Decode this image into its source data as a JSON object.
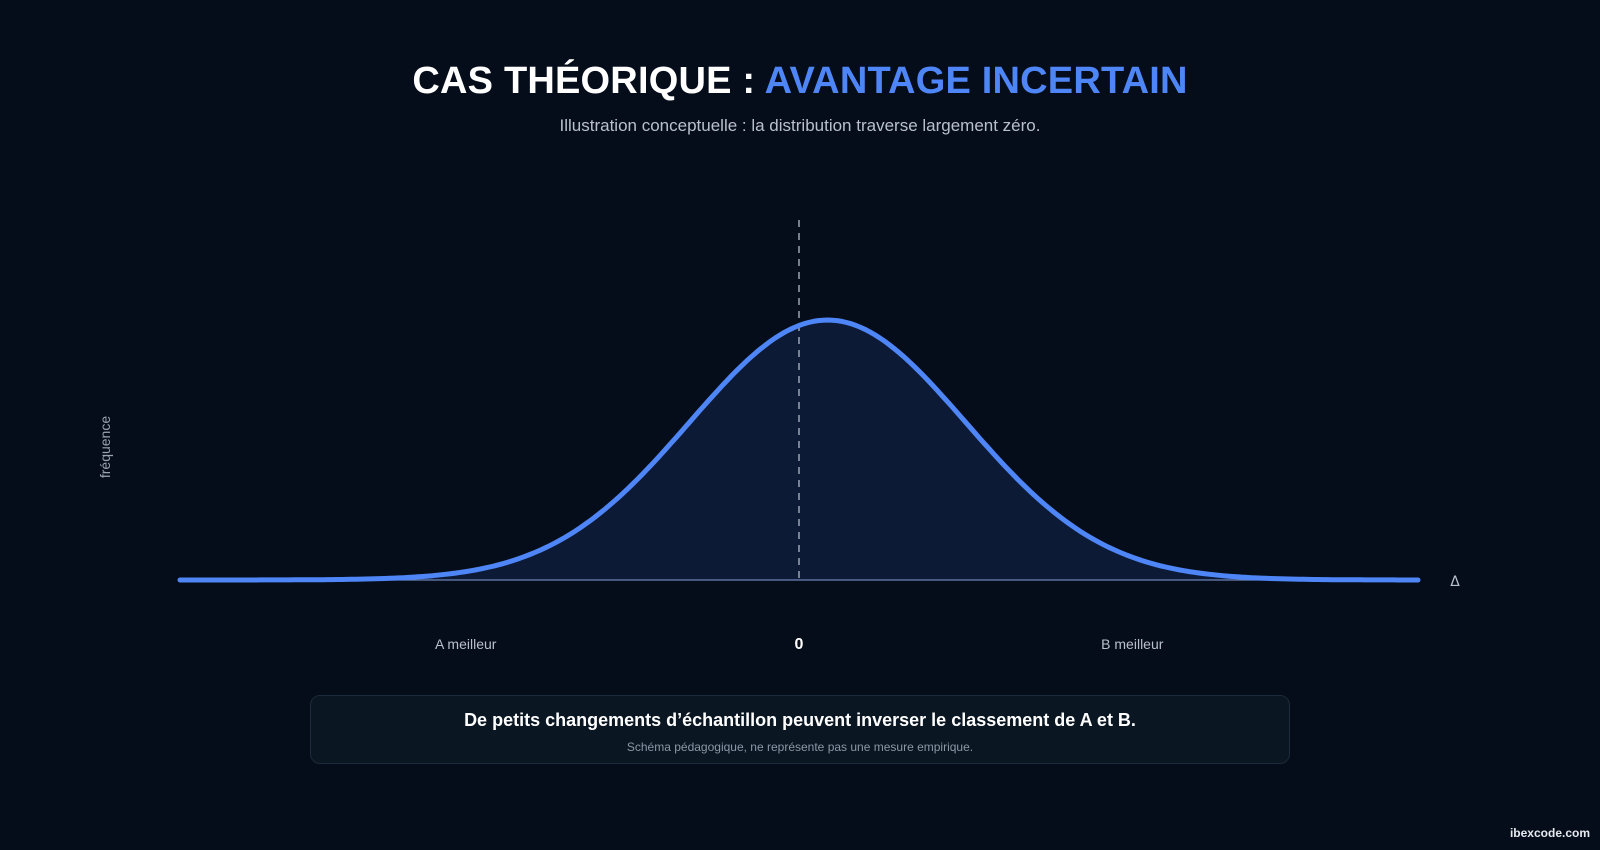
{
  "header": {
    "title_prefix": "CAS THÉORIQUE : ",
    "title_accent": "AVANTAGE INCERTAIN",
    "subtitle": "Illustration conceptuelle : la distribution traverse largement zéro."
  },
  "chart_data": {
    "type": "area",
    "ylabel": "fréquence",
    "xlabel": "Δ",
    "x_markers": [
      {
        "label": "A meilleur",
        "x": -3.5
      },
      {
        "label": "0",
        "x": 0
      },
      {
        "label": "B meilleur",
        "x": 3.5
      }
    ],
    "reference_line_x": 0,
    "distribution": {
      "shape": "normal",
      "mean": 0.3,
      "sd": 1.45,
      "x_range": [
        -6.5,
        6.5
      ]
    },
    "grid": false,
    "legend": "none",
    "colors": {
      "curve": "#4f86f7",
      "fill": "#0c1a36",
      "baseline": "#6b83b8",
      "reference": "#9aa3b2"
    }
  },
  "note": {
    "main": "De petits changements d’échantillon peuvent inverser le classement de A et B.",
    "sub": "Schéma pédagogique, ne représente pas une mesure empirique."
  },
  "watermark": "ibexcode.com"
}
